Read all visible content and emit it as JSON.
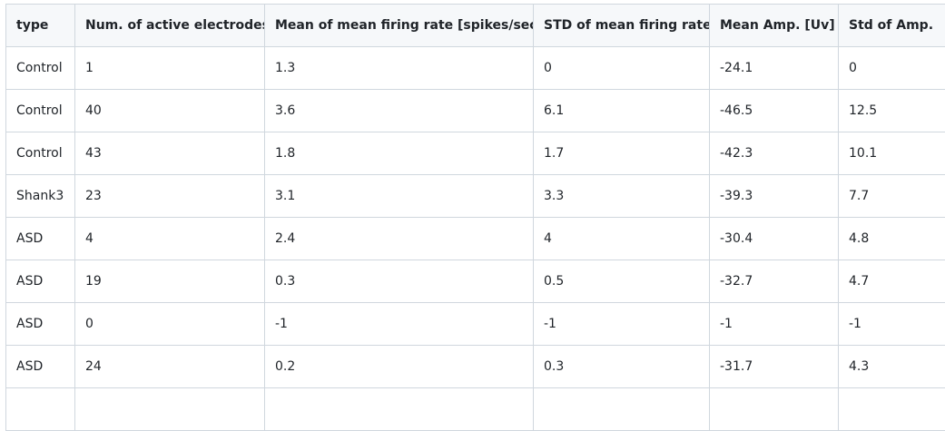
{
  "table": {
    "headers": [
      "type",
      "Num. of active electrodes",
      "Mean of mean firing rate [spikes/sec]",
      "STD of mean firing rate",
      "Mean Amp. [Uv]",
      "Std of Amp."
    ],
    "rows": [
      [
        "Control",
        "1",
        "1.3",
        "0",
        "-24.1",
        "0"
      ],
      [
        "Control",
        "40",
        "3.6",
        "6.1",
        "-46.5",
        "12.5"
      ],
      [
        "Control",
        "43",
        "1.8",
        "1.7",
        "-42.3",
        "10.1"
      ],
      [
        "Shank3",
        "23",
        "3.1",
        "3.3",
        "-39.3",
        "7.7"
      ],
      [
        "ASD",
        "4",
        "2.4",
        "4",
        "-30.4",
        "4.8"
      ],
      [
        "ASD",
        "19",
        "0.3",
        "0.5",
        "-32.7",
        "4.7"
      ],
      [
        "ASD",
        "0",
        "-1",
        "-1",
        "-1",
        "-1"
      ],
      [
        "ASD",
        "24",
        "0.2",
        "0.3",
        "-31.7",
        "4.3"
      ]
    ]
  }
}
